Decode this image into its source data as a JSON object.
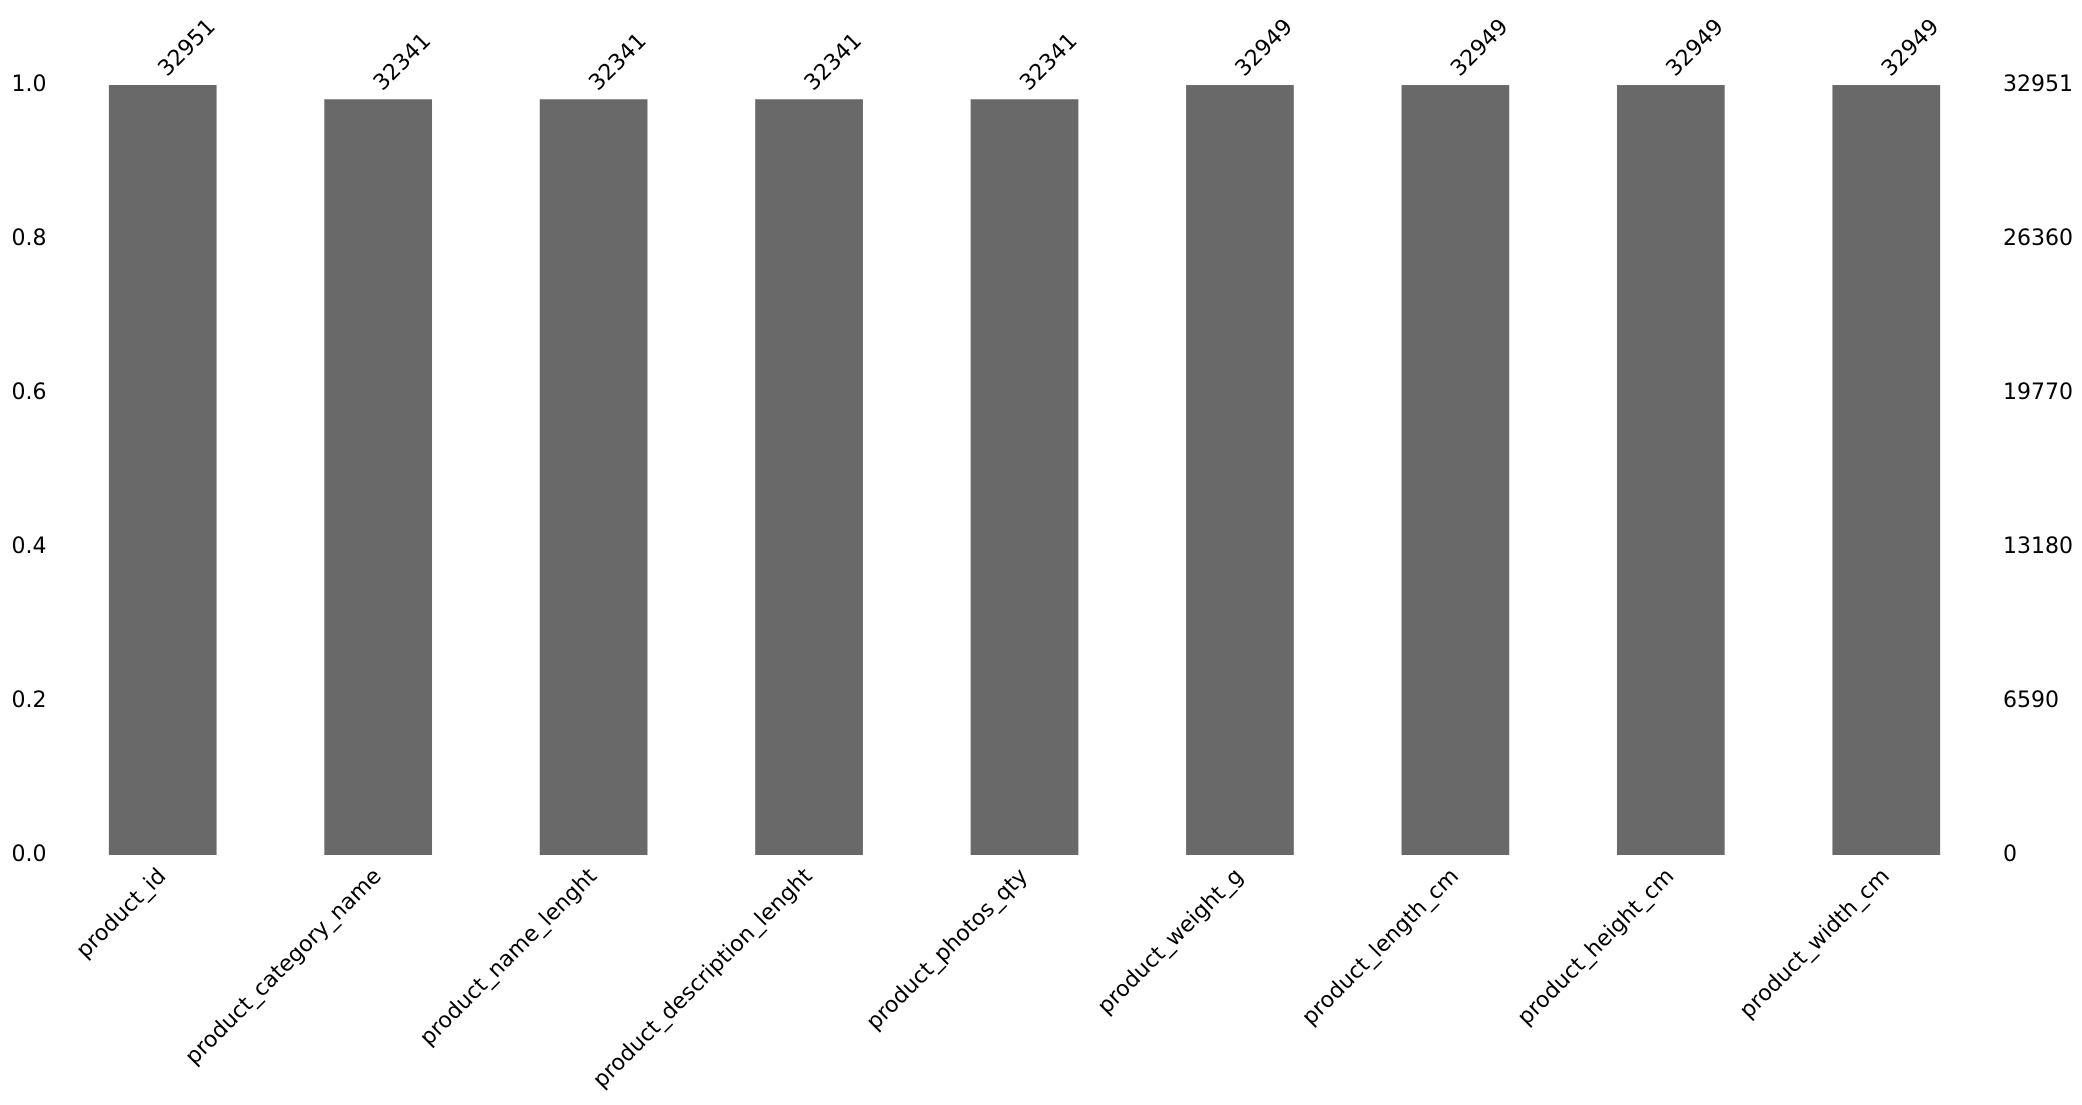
{
  "chart_data": {
    "type": "bar",
    "categories": [
      "product_id",
      "product_category_name",
      "product_name_lenght",
      "product_description_lenght",
      "product_photos_qty",
      "product_weight_g",
      "product_length_cm",
      "product_height_cm",
      "product_width_cm"
    ],
    "series": [
      {
        "color": "#696969",
        "axis": "y2",
        "values": [
          32951,
          32341,
          32341,
          32341,
          32341,
          32949,
          32949,
          32949,
          32949
        ]
      }
    ],
    "ylim": [
      0,
      1
    ],
    "yticks": [
      {
        "value": 0,
        "label": "0.0"
      },
      0.2,
      0.4,
      0.6,
      0.8,
      {
        "value": 1,
        "label": "1.0"
      }
    ],
    "y2lim": [
      0,
      32951
    ],
    "y2ticks": [
      0,
      6590,
      13180,
      19770,
      26360,
      32951
    ],
    "grid": false
  }
}
